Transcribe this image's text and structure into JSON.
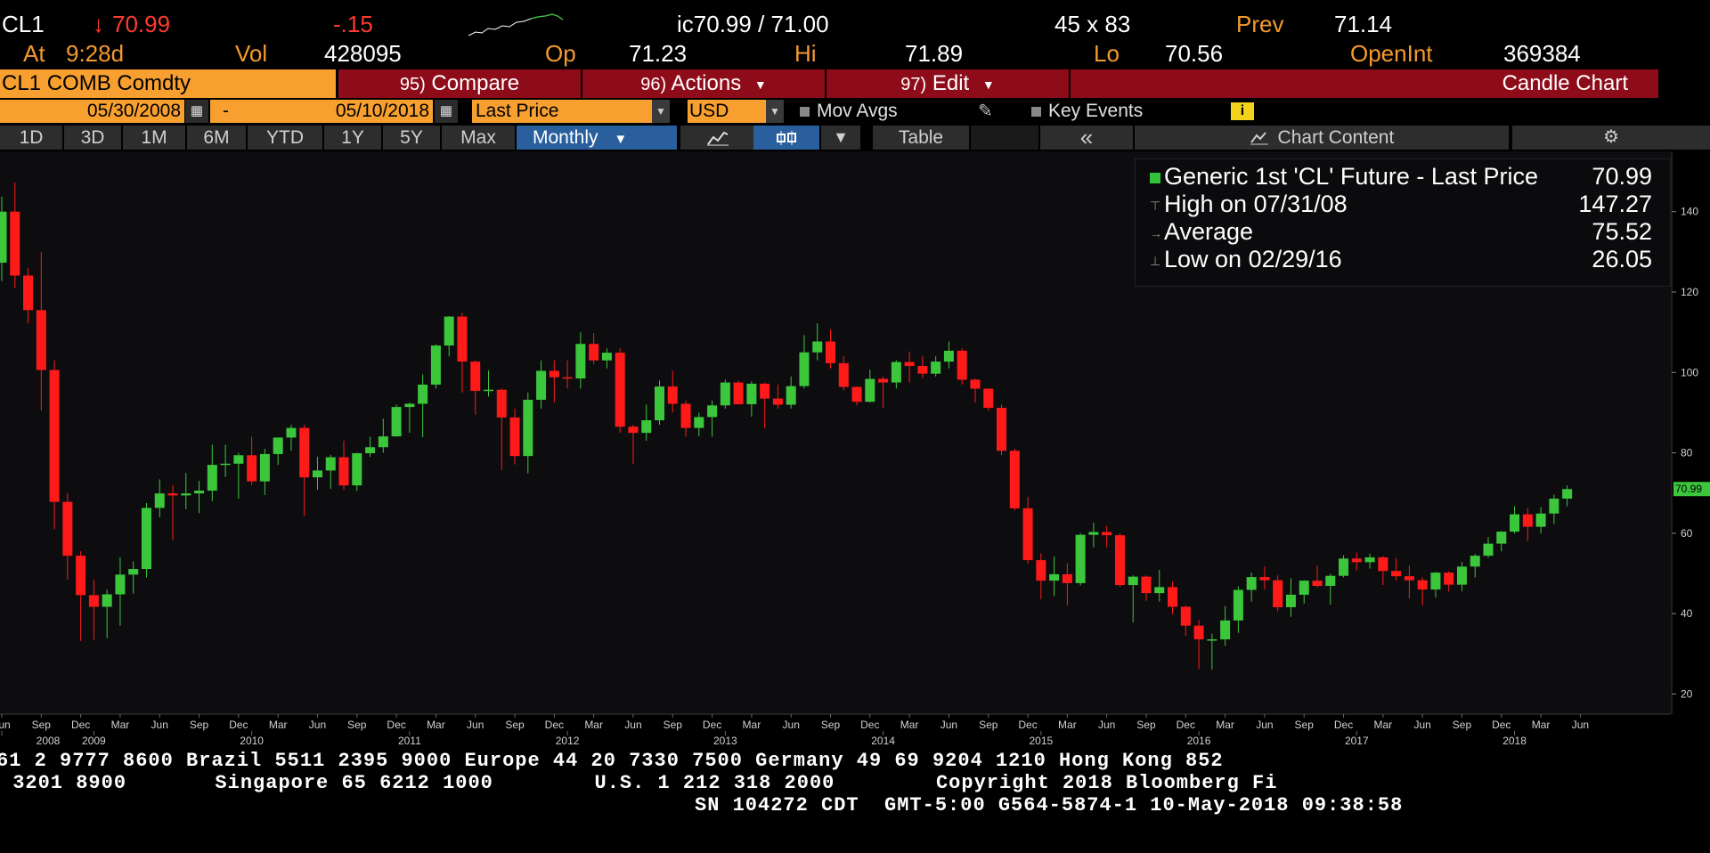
{
  "quote": {
    "ticker": "CL1",
    "arrow": "↓",
    "last": "70.99",
    "change": "-.15",
    "bid_ask": "ic70.99 / 71.00",
    "size": "45 x 83",
    "prev_label": "Prev",
    "prev": "71.14",
    "at_label": "At",
    "time": "9:28d",
    "vol_label": "Vol",
    "vol": "428095",
    "op_label": "Op",
    "op": "71.23",
    "hi_label": "Hi",
    "hi": "71.89",
    "lo_label": "Lo",
    "lo": "70.56",
    "oi_label": "OpenInt",
    "oi": "369384"
  },
  "toolbar": {
    "security": "CL1 COMB Comdty",
    "compare_num": "95)",
    "compare": "Compare",
    "actions_num": "96)",
    "actions": "Actions",
    "edit_num": "97)",
    "edit": "Edit",
    "chart_type": "Candle Chart"
  },
  "settings": {
    "start_date": "05/30/2008",
    "dash": "-",
    "end_date": "05/10/2018",
    "field": "Last Price",
    "currency": "USD",
    "mov_avgs": "Mov Avgs",
    "key_events": "Key Events",
    "info_icon": "i"
  },
  "periods": {
    "items": [
      "1D",
      "3D",
      "1M",
      "6M",
      "YTD",
      "1Y",
      "5Y",
      "Max"
    ],
    "selected": "Monthly",
    "table": "Table",
    "collapse": "«",
    "chart_content": "Chart Content"
  },
  "legend": {
    "series": "Generic 1st 'CL' Future - Last Price",
    "last": "70.99",
    "high_label": "High on 07/31/08",
    "high": "147.27",
    "avg_label": "Average",
    "avg": "75.52",
    "low_label": "Low on 02/29/16",
    "low": "26.05"
  },
  "chart_data": {
    "type": "candlestick",
    "title": "",
    "ylim": [
      15,
      155
    ],
    "yticks": [
      20,
      40,
      60,
      80,
      100,
      120,
      140
    ],
    "last_price_tag": "70.99",
    "up_color": "#3cc63c",
    "down_color": "#ff1a1a",
    "x_month_labels": [
      "Jun",
      "Sep",
      "Dec",
      "Mar",
      "Jun",
      "Sep",
      "Dec",
      "Mar",
      "Jun",
      "Sep",
      "Dec",
      "Mar",
      "Jun",
      "Sep",
      "Dec",
      "Mar",
      "Jun",
      "Sep",
      "Dec",
      "Mar",
      "Jun",
      "Sep",
      "Dec",
      "Mar",
      "Jun",
      "Sep",
      "Dec",
      "Mar",
      "Jun",
      "Sep",
      "Dec",
      "Mar",
      "Jun",
      "Sep",
      "Dec",
      "Mar",
      "Jun",
      "Sep",
      "Dec",
      "Mar",
      "Jun"
    ],
    "x_year_labels": [
      "2008",
      "2009",
      "2010",
      "2011",
      "2012",
      "2013",
      "2014",
      "2015",
      "2016",
      "2017",
      "2018"
    ],
    "candles": [
      {
        "d": "2008-06",
        "o": 127.3,
        "h": 143.7,
        "l": 122.7,
        "c": 140.0
      },
      {
        "d": "2008-07",
        "o": 140.0,
        "h": 147.27,
        "l": 121.0,
        "c": 124.1
      },
      {
        "d": "2008-08",
        "o": 124.1,
        "h": 126.0,
        "l": 112.2,
        "c": 115.5
      },
      {
        "d": "2008-09",
        "o": 115.5,
        "h": 130.0,
        "l": 90.5,
        "c": 100.6
      },
      {
        "d": "2008-10",
        "o": 100.6,
        "h": 103.0,
        "l": 61.0,
        "c": 67.8
      },
      {
        "d": "2008-11",
        "o": 67.8,
        "h": 70.0,
        "l": 48.5,
        "c": 54.4
      },
      {
        "d": "2008-12",
        "o": 54.4,
        "h": 55.5,
        "l": 33.2,
        "c": 44.6
      },
      {
        "d": "2009-01",
        "o": 44.6,
        "h": 48.5,
        "l": 33.5,
        "c": 41.7
      },
      {
        "d": "2009-02",
        "o": 41.7,
        "h": 46.0,
        "l": 33.9,
        "c": 44.8
      },
      {
        "d": "2009-03",
        "o": 44.8,
        "h": 54.0,
        "l": 37.0,
        "c": 49.7
      },
      {
        "d": "2009-04",
        "o": 49.7,
        "h": 53.0,
        "l": 45.0,
        "c": 51.1
      },
      {
        "d": "2009-05",
        "o": 51.1,
        "h": 67.5,
        "l": 49.0,
        "c": 66.3
      },
      {
        "d": "2009-06",
        "o": 66.3,
        "h": 73.4,
        "l": 64.0,
        "c": 69.9
      },
      {
        "d": "2009-07",
        "o": 69.9,
        "h": 72.0,
        "l": 58.3,
        "c": 69.4
      },
      {
        "d": "2009-08",
        "o": 69.4,
        "h": 75.0,
        "l": 66.0,
        "c": 69.9
      },
      {
        "d": "2009-09",
        "o": 69.9,
        "h": 73.0,
        "l": 65.0,
        "c": 70.6
      },
      {
        "d": "2009-10",
        "o": 70.6,
        "h": 82.0,
        "l": 68.0,
        "c": 77.0
      },
      {
        "d": "2009-11",
        "o": 77.0,
        "h": 82.0,
        "l": 74.0,
        "c": 77.3
      },
      {
        "d": "2009-12",
        "o": 77.3,
        "h": 80.0,
        "l": 68.6,
        "c": 79.4
      },
      {
        "d": "2010-01",
        "o": 79.4,
        "h": 84.0,
        "l": 72.0,
        "c": 72.9
      },
      {
        "d": "2010-02",
        "o": 72.9,
        "h": 81.0,
        "l": 69.5,
        "c": 79.7
      },
      {
        "d": "2010-03",
        "o": 79.7,
        "h": 83.5,
        "l": 77.0,
        "c": 83.8
      },
      {
        "d": "2010-04",
        "o": 83.8,
        "h": 87.0,
        "l": 80.5,
        "c": 86.2
      },
      {
        "d": "2010-05",
        "o": 86.2,
        "h": 87.0,
        "l": 64.2,
        "c": 73.9
      },
      {
        "d": "2010-06",
        "o": 73.9,
        "h": 79.0,
        "l": 70.8,
        "c": 75.6
      },
      {
        "d": "2010-07",
        "o": 75.6,
        "h": 79.5,
        "l": 71.0,
        "c": 78.9
      },
      {
        "d": "2010-08",
        "o": 78.9,
        "h": 83.0,
        "l": 70.8,
        "c": 71.9
      },
      {
        "d": "2010-09",
        "o": 71.9,
        "h": 80.0,
        "l": 70.5,
        "c": 79.9
      },
      {
        "d": "2010-10",
        "o": 79.9,
        "h": 84.0,
        "l": 79.0,
        "c": 81.4
      },
      {
        "d": "2010-11",
        "o": 81.4,
        "h": 88.5,
        "l": 80.0,
        "c": 84.1
      },
      {
        "d": "2010-12",
        "o": 84.1,
        "h": 92.0,
        "l": 84.0,
        "c": 91.4
      },
      {
        "d": "2011-01",
        "o": 91.4,
        "h": 92.5,
        "l": 85.0,
        "c": 92.2
      },
      {
        "d": "2011-02",
        "o": 92.2,
        "h": 99.5,
        "l": 83.9,
        "c": 96.97
      },
      {
        "d": "2011-03",
        "o": 96.97,
        "h": 107.0,
        "l": 96.0,
        "c": 106.7
      },
      {
        "d": "2011-04",
        "o": 106.7,
        "h": 114.0,
        "l": 104.0,
        "c": 113.9
      },
      {
        "d": "2011-05",
        "o": 113.9,
        "h": 114.8,
        "l": 95.0,
        "c": 102.7
      },
      {
        "d": "2011-06",
        "o": 102.7,
        "h": 103.0,
        "l": 89.5,
        "c": 95.4
      },
      {
        "d": "2011-07",
        "o": 95.4,
        "h": 100.5,
        "l": 94.0,
        "c": 95.7
      },
      {
        "d": "2011-08",
        "o": 95.7,
        "h": 96.0,
        "l": 75.7,
        "c": 88.8
      },
      {
        "d": "2011-09",
        "o": 88.8,
        "h": 91.0,
        "l": 77.1,
        "c": 79.2
      },
      {
        "d": "2011-10",
        "o": 79.2,
        "h": 95.0,
        "l": 74.9,
        "c": 93.2
      },
      {
        "d": "2011-11",
        "o": 93.2,
        "h": 103.0,
        "l": 91.0,
        "c": 100.4
      },
      {
        "d": "2011-12",
        "o": 100.4,
        "h": 103.0,
        "l": 92.5,
        "c": 98.8
      },
      {
        "d": "2012-01",
        "o": 98.8,
        "h": 103.0,
        "l": 96.0,
        "c": 98.5
      },
      {
        "d": "2012-02",
        "o": 98.5,
        "h": 110.0,
        "l": 96.0,
        "c": 107.1
      },
      {
        "d": "2012-03",
        "o": 107.1,
        "h": 109.8,
        "l": 102.0,
        "c": 103.0
      },
      {
        "d": "2012-04",
        "o": 103.0,
        "h": 106.0,
        "l": 101.0,
        "c": 104.9
      },
      {
        "d": "2012-05",
        "o": 104.9,
        "h": 106.0,
        "l": 85.0,
        "c": 86.5
      },
      {
        "d": "2012-06",
        "o": 86.5,
        "h": 87.0,
        "l": 77.3,
        "c": 84.96
      },
      {
        "d": "2012-07",
        "o": 84.96,
        "h": 92.0,
        "l": 83.0,
        "c": 88.1
      },
      {
        "d": "2012-08",
        "o": 88.1,
        "h": 98.0,
        "l": 87.0,
        "c": 96.5
      },
      {
        "d": "2012-09",
        "o": 96.5,
        "h": 100.4,
        "l": 90.0,
        "c": 92.2
      },
      {
        "d": "2012-10",
        "o": 92.2,
        "h": 93.0,
        "l": 84.0,
        "c": 86.2
      },
      {
        "d": "2012-11",
        "o": 86.2,
        "h": 90.0,
        "l": 84.1,
        "c": 88.9
      },
      {
        "d": "2012-12",
        "o": 88.9,
        "h": 93.0,
        "l": 84.0,
        "c": 91.8
      },
      {
        "d": "2013-01",
        "o": 91.8,
        "h": 98.2,
        "l": 91.0,
        "c": 97.5
      },
      {
        "d": "2013-02",
        "o": 97.5,
        "h": 98.0,
        "l": 92.0,
        "c": 92.1
      },
      {
        "d": "2013-03",
        "o": 92.1,
        "h": 97.8,
        "l": 89.0,
        "c": 97.2
      },
      {
        "d": "2013-04",
        "o": 97.2,
        "h": 97.5,
        "l": 86.1,
        "c": 93.5
      },
      {
        "d": "2013-05",
        "o": 93.5,
        "h": 97.0,
        "l": 91.0,
        "c": 91.97
      },
      {
        "d": "2013-06",
        "o": 91.97,
        "h": 99.0,
        "l": 91.0,
        "c": 96.6
      },
      {
        "d": "2013-07",
        "o": 96.6,
        "h": 109.3,
        "l": 96.0,
        "c": 105.0
      },
      {
        "d": "2013-08",
        "o": 105.0,
        "h": 112.2,
        "l": 103.0,
        "c": 107.7
      },
      {
        "d": "2013-09",
        "o": 107.7,
        "h": 110.7,
        "l": 101.0,
        "c": 102.3
      },
      {
        "d": "2013-10",
        "o": 102.3,
        "h": 104.0,
        "l": 95.5,
        "c": 96.4
      },
      {
        "d": "2013-11",
        "o": 96.4,
        "h": 96.5,
        "l": 91.8,
        "c": 92.7
      },
      {
        "d": "2013-12",
        "o": 92.7,
        "h": 100.7,
        "l": 92.5,
        "c": 98.4
      },
      {
        "d": "2014-01",
        "o": 98.4,
        "h": 99.0,
        "l": 91.2,
        "c": 97.5
      },
      {
        "d": "2014-02",
        "o": 97.5,
        "h": 103.0,
        "l": 96.0,
        "c": 102.6
      },
      {
        "d": "2014-03",
        "o": 102.6,
        "h": 105.2,
        "l": 97.5,
        "c": 101.6
      },
      {
        "d": "2014-04",
        "o": 101.6,
        "h": 104.0,
        "l": 98.6,
        "c": 99.7
      },
      {
        "d": "2014-05",
        "o": 99.7,
        "h": 104.0,
        "l": 99.0,
        "c": 102.7
      },
      {
        "d": "2014-06",
        "o": 102.7,
        "h": 107.7,
        "l": 101.0,
        "c": 105.4
      },
      {
        "d": "2014-07",
        "o": 105.4,
        "h": 106.0,
        "l": 97.0,
        "c": 98.2
      },
      {
        "d": "2014-08",
        "o": 98.2,
        "h": 98.5,
        "l": 92.5,
        "c": 95.96
      },
      {
        "d": "2014-09",
        "o": 95.96,
        "h": 96.0,
        "l": 90.5,
        "c": 91.2
      },
      {
        "d": "2014-10",
        "o": 91.2,
        "h": 92.0,
        "l": 79.4,
        "c": 80.5
      },
      {
        "d": "2014-11",
        "o": 80.5,
        "h": 81.0,
        "l": 65.7,
        "c": 66.2
      },
      {
        "d": "2014-12",
        "o": 66.2,
        "h": 69.0,
        "l": 52.4,
        "c": 53.3
      },
      {
        "d": "2015-01",
        "o": 53.3,
        "h": 55.0,
        "l": 43.6,
        "c": 48.2
      },
      {
        "d": "2015-02",
        "o": 48.2,
        "h": 54.2,
        "l": 44.4,
        "c": 49.8
      },
      {
        "d": "2015-03",
        "o": 49.8,
        "h": 52.5,
        "l": 42.0,
        "c": 47.6
      },
      {
        "d": "2015-04",
        "o": 47.6,
        "h": 60.0,
        "l": 47.0,
        "c": 59.6
      },
      {
        "d": "2015-05",
        "o": 59.6,
        "h": 62.6,
        "l": 56.5,
        "c": 60.3
      },
      {
        "d": "2015-06",
        "o": 60.3,
        "h": 61.8,
        "l": 56.5,
        "c": 59.5
      },
      {
        "d": "2015-07",
        "o": 59.5,
        "h": 60.0,
        "l": 46.7,
        "c": 47.1
      },
      {
        "d": "2015-08",
        "o": 47.1,
        "h": 49.5,
        "l": 37.8,
        "c": 49.2
      },
      {
        "d": "2015-09",
        "o": 49.2,
        "h": 49.5,
        "l": 43.2,
        "c": 45.1
      },
      {
        "d": "2015-10",
        "o": 45.1,
        "h": 50.9,
        "l": 43.0,
        "c": 46.6
      },
      {
        "d": "2015-11",
        "o": 46.6,
        "h": 48.0,
        "l": 39.9,
        "c": 41.7
      },
      {
        "d": "2015-12",
        "o": 41.7,
        "h": 42.0,
        "l": 34.5,
        "c": 37.0
      },
      {
        "d": "2016-01",
        "o": 37.0,
        "h": 38.4,
        "l": 26.2,
        "c": 33.6
      },
      {
        "d": "2016-02",
        "o": 33.6,
        "h": 35.0,
        "l": 26.05,
        "c": 33.6
      },
      {
        "d": "2016-03",
        "o": 33.6,
        "h": 41.9,
        "l": 32.0,
        "c": 38.3
      },
      {
        "d": "2016-04",
        "o": 38.3,
        "h": 46.8,
        "l": 35.2,
        "c": 45.9
      },
      {
        "d": "2016-05",
        "o": 45.9,
        "h": 50.2,
        "l": 43.0,
        "c": 49.1
      },
      {
        "d": "2016-06",
        "o": 49.1,
        "h": 51.7,
        "l": 46.0,
        "c": 48.3
      },
      {
        "d": "2016-07",
        "o": 48.3,
        "h": 49.5,
        "l": 40.6,
        "c": 41.6
      },
      {
        "d": "2016-08",
        "o": 41.6,
        "h": 48.8,
        "l": 39.2,
        "c": 44.7
      },
      {
        "d": "2016-09",
        "o": 44.7,
        "h": 48.3,
        "l": 42.5,
        "c": 48.2
      },
      {
        "d": "2016-10",
        "o": 48.2,
        "h": 51.9,
        "l": 46.5,
        "c": 46.9
      },
      {
        "d": "2016-11",
        "o": 46.9,
        "h": 49.9,
        "l": 42.2,
        "c": 49.4
      },
      {
        "d": "2016-12",
        "o": 49.4,
        "h": 54.5,
        "l": 49.0,
        "c": 53.7
      },
      {
        "d": "2017-01",
        "o": 53.7,
        "h": 55.2,
        "l": 50.7,
        "c": 52.8
      },
      {
        "d": "2017-02",
        "o": 52.8,
        "h": 54.9,
        "l": 51.2,
        "c": 54.0
      },
      {
        "d": "2017-03",
        "o": 54.0,
        "h": 54.3,
        "l": 47.1,
        "c": 50.6
      },
      {
        "d": "2017-04",
        "o": 50.6,
        "h": 53.8,
        "l": 48.2,
        "c": 49.3
      },
      {
        "d": "2017-05",
        "o": 49.3,
        "h": 52.0,
        "l": 43.8,
        "c": 48.3
      },
      {
        "d": "2017-06",
        "o": 48.3,
        "h": 49.0,
        "l": 42.0,
        "c": 46.0
      },
      {
        "d": "2017-07",
        "o": 46.0,
        "h": 50.4,
        "l": 44.0,
        "c": 50.2
      },
      {
        "d": "2017-08",
        "o": 50.2,
        "h": 50.5,
        "l": 45.5,
        "c": 47.2
      },
      {
        "d": "2017-09",
        "o": 47.2,
        "h": 52.9,
        "l": 45.6,
        "c": 51.7
      },
      {
        "d": "2017-10",
        "o": 51.7,
        "h": 54.8,
        "l": 49.0,
        "c": 54.4
      },
      {
        "d": "2017-11",
        "o": 54.4,
        "h": 59.0,
        "l": 53.9,
        "c": 57.4
      },
      {
        "d": "2017-12",
        "o": 57.4,
        "h": 60.5,
        "l": 55.5,
        "c": 60.4
      },
      {
        "d": "2018-01",
        "o": 60.4,
        "h": 66.7,
        "l": 59.9,
        "c": 64.7
      },
      {
        "d": "2018-02",
        "o": 64.7,
        "h": 66.3,
        "l": 58.1,
        "c": 61.6
      },
      {
        "d": "2018-03",
        "o": 61.6,
        "h": 66.5,
        "l": 59.9,
        "c": 64.9
      },
      {
        "d": "2018-04",
        "o": 64.9,
        "h": 69.6,
        "l": 62.3,
        "c": 68.6
      },
      {
        "d": "2018-05",
        "o": 68.6,
        "h": 71.9,
        "l": 66.7,
        "c": 70.99
      }
    ]
  },
  "footer": {
    "line1": "61 2 9777 8600 Brazil 5511 2395 9000 Europe 44 20 7330 7500 Germany 49 69 9204 1210 Hong Kong 852",
    "line2": " 3201 8900       Singapore 65 6212 1000        U.S. 1 212 318 2000        Copyright 2018 Bloomberg Fi",
    "line3": "SN 104272 CDT  GMT-5:00 G564-5874-1 10-May-2018 09:38:58"
  }
}
